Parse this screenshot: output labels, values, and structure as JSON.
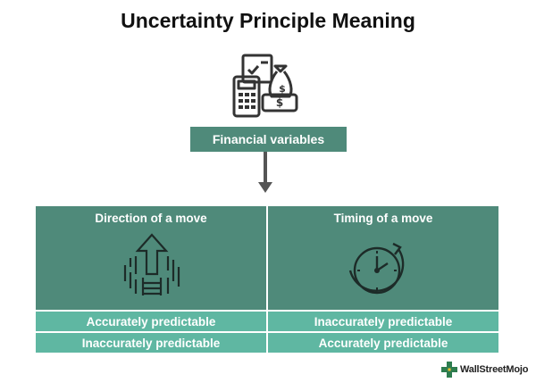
{
  "title": "Uncertainty Principle Meaning",
  "icons": {
    "hero": "money-bag-calculator-document-icon",
    "arrow": "arrow-down-icon",
    "direction": "arrow-up-icon",
    "timing": "clock-icon",
    "logo": "wallstreetmojo-logo-icon"
  },
  "financial_box": "Financial variables",
  "columns": [
    {
      "heading": "Direction of a move",
      "row1": "Accurately predictable",
      "row2": "Inaccurately predictable"
    },
    {
      "heading": "Timing of a move",
      "row1": "Inaccurately predictable",
      "row2": "Accurately predictable"
    }
  ],
  "brand": "WallStreetMojo",
  "colors": {
    "header_fill": "#4f8a7a",
    "cell_fill": "#5fb7a2",
    "text_dark": "#111111"
  }
}
